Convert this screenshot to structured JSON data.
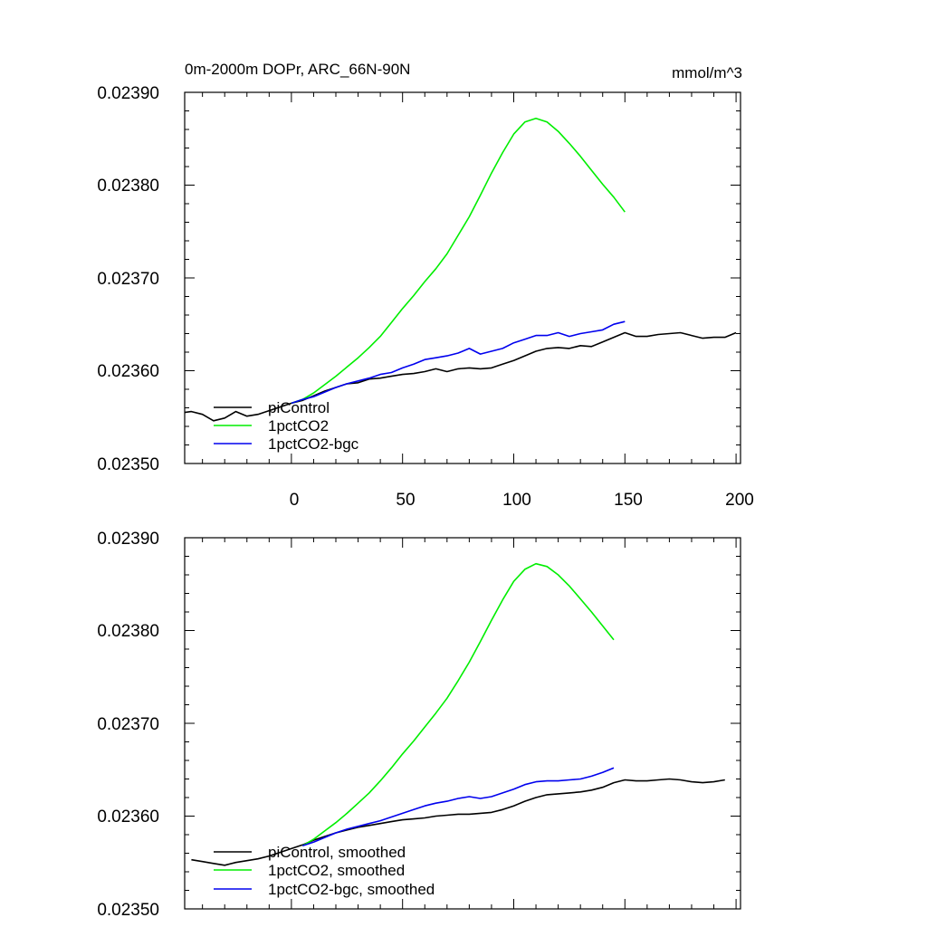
{
  "chart_data": [
    {
      "type": "line",
      "title": "0m-2000m DOPr, ARC_66N-90N",
      "units": "mmol/m^3",
      "xlim": [
        -48,
        202
      ],
      "ylim": [
        0.0235,
        0.0239
      ],
      "xticks": [
        0,
        50,
        100,
        150,
        200
      ],
      "xtick_labels": [
        "0",
        "50",
        "100",
        "150",
        "200"
      ],
      "yticks": [
        0.0235,
        0.0236,
        0.0237,
        0.0238,
        0.0239
      ],
      "ytick_labels": [
        "0.02350",
        "0.02360",
        "0.02370",
        "0.02380",
        "0.02390"
      ],
      "legend_position": "bottom-left",
      "series": [
        {
          "name": "piControl",
          "color": "#000000",
          "x": [
            -48,
            -45,
            -40,
            -35,
            -30,
            -25,
            -20,
            -15,
            -10,
            -5,
            0,
            5,
            10,
            15,
            20,
            25,
            30,
            35,
            40,
            45,
            50,
            55,
            60,
            65,
            70,
            75,
            80,
            85,
            90,
            95,
            100,
            105,
            110,
            115,
            120,
            125,
            130,
            135,
            140,
            145,
            150,
            155,
            160,
            165,
            170,
            175,
            180,
            185,
            190,
            195,
            200
          ],
          "y": [
            0.023555,
            0.023556,
            0.023553,
            0.023546,
            0.023549,
            0.023556,
            0.023551,
            0.023553,
            0.023557,
            0.023561,
            0.023565,
            0.023568,
            0.023573,
            0.023578,
            0.023582,
            0.023586,
            0.023587,
            0.023591,
            0.023592,
            0.023594,
            0.023596,
            0.023597,
            0.023599,
            0.023602,
            0.023599,
            0.023602,
            0.023603,
            0.023602,
            0.023603,
            0.023607,
            0.023611,
            0.023616,
            0.023621,
            0.023624,
            0.023625,
            0.023624,
            0.023627,
            0.023626,
            0.023631,
            0.023636,
            0.023641,
            0.023637,
            0.023637,
            0.023639,
            0.02364,
            0.023641,
            0.023638,
            0.023635,
            0.023636,
            0.023636,
            0.023641
          ]
        },
        {
          "name": "1pctCO2",
          "color": "#00ee00",
          "x": [
            0,
            5,
            10,
            15,
            20,
            25,
            30,
            35,
            40,
            45,
            50,
            55,
            60,
            65,
            70,
            75,
            80,
            85,
            90,
            95,
            100,
            105,
            110,
            115,
            120,
            125,
            130,
            135,
            140,
            145,
            150
          ],
          "y": [
            0.023565,
            0.023569,
            0.023576,
            0.023585,
            0.023594,
            0.023604,
            0.023614,
            0.023625,
            0.023637,
            0.023652,
            0.023667,
            0.023681,
            0.023696,
            0.02371,
            0.023726,
            0.023746,
            0.023766,
            0.023789,
            0.023813,
            0.023835,
            0.023855,
            0.023868,
            0.023872,
            0.023868,
            0.023858,
            0.023845,
            0.023831,
            0.023816,
            0.023801,
            0.023787,
            0.023771
          ]
        },
        {
          "name": "1pctCO2-bgc",
          "color": "#0000ee",
          "x": [
            0,
            5,
            10,
            15,
            20,
            25,
            30,
            35,
            40,
            45,
            50,
            55,
            60,
            65,
            70,
            75,
            80,
            85,
            90,
            95,
            100,
            105,
            110,
            115,
            120,
            125,
            130,
            135,
            140,
            145,
            150
          ],
          "y": [
            0.023565,
            0.023569,
            0.023572,
            0.023577,
            0.023582,
            0.023586,
            0.023589,
            0.023592,
            0.023596,
            0.023598,
            0.023603,
            0.023607,
            0.023612,
            0.023614,
            0.023616,
            0.023619,
            0.023624,
            0.023618,
            0.023621,
            0.023624,
            0.02363,
            0.023634,
            0.023638,
            0.023638,
            0.023641,
            0.023637,
            0.02364,
            0.023642,
            0.023644,
            0.02365,
            0.023653
          ]
        }
      ]
    },
    {
      "type": "line",
      "xlim": [
        -48,
        202
      ],
      "ylim": [
        0.0235,
        0.0239
      ],
      "xticks": [
        0,
        50,
        100,
        150,
        200
      ],
      "yticks": [
        0.0235,
        0.0236,
        0.0237,
        0.0238,
        0.0239
      ],
      "ytick_labels": [
        "0.02350",
        "0.02360",
        "0.02370",
        "0.02380",
        "0.02390"
      ],
      "legend_position": "bottom-left",
      "series": [
        {
          "name": "piControl, smoothed",
          "color": "#000000",
          "x": [
            -45,
            -40,
            -35,
            -30,
            -25,
            -20,
            -15,
            -10,
            -5,
            0,
            5,
            10,
            15,
            20,
            25,
            30,
            35,
            40,
            45,
            50,
            55,
            60,
            65,
            70,
            75,
            80,
            85,
            90,
            95,
            100,
            105,
            110,
            115,
            120,
            125,
            130,
            135,
            140,
            145,
            150,
            155,
            160,
            165,
            170,
            175,
            180,
            185,
            190,
            195
          ],
          "y": [
            0.023553,
            0.023551,
            0.023549,
            0.023547,
            0.02355,
            0.023552,
            0.023554,
            0.023557,
            0.023561,
            0.023565,
            0.023569,
            0.023574,
            0.023578,
            0.023582,
            0.023585,
            0.023588,
            0.02359,
            0.023592,
            0.023594,
            0.023596,
            0.023597,
            0.023598,
            0.0236,
            0.023601,
            0.023602,
            0.023602,
            0.023603,
            0.023604,
            0.023607,
            0.023611,
            0.023616,
            0.02362,
            0.023623,
            0.023624,
            0.023625,
            0.023626,
            0.023628,
            0.023631,
            0.023636,
            0.023639,
            0.023638,
            0.023638,
            0.023639,
            0.02364,
            0.023639,
            0.023637,
            0.023636,
            0.023637,
            0.023639
          ]
        },
        {
          "name": "1pctCO2, smoothed",
          "color": "#00ee00",
          "x": [
            5,
            10,
            15,
            20,
            25,
            30,
            35,
            40,
            45,
            50,
            55,
            60,
            65,
            70,
            75,
            80,
            85,
            90,
            95,
            100,
            105,
            110,
            115,
            120,
            125,
            130,
            135,
            140,
            145
          ],
          "y": [
            0.023568,
            0.023575,
            0.023584,
            0.023593,
            0.023603,
            0.023614,
            0.023625,
            0.023638,
            0.023652,
            0.023667,
            0.023681,
            0.023696,
            0.023711,
            0.023727,
            0.023746,
            0.023766,
            0.023788,
            0.023811,
            0.023833,
            0.023853,
            0.023866,
            0.023872,
            0.023869,
            0.02386,
            0.023848,
            0.023834,
            0.02382,
            0.023805,
            0.02379
          ]
        },
        {
          "name": "1pctCO2-bgc, smoothed",
          "color": "#0000ee",
          "x": [
            5,
            10,
            15,
            20,
            25,
            30,
            35,
            40,
            45,
            50,
            55,
            60,
            65,
            70,
            75,
            80,
            85,
            90,
            95,
            100,
            105,
            110,
            115,
            120,
            125,
            130,
            135,
            140,
            145
          ],
          "y": [
            0.023568,
            0.023572,
            0.023577,
            0.023582,
            0.023586,
            0.023589,
            0.023592,
            0.023595,
            0.023599,
            0.023603,
            0.023607,
            0.023611,
            0.023614,
            0.023616,
            0.023619,
            0.023621,
            0.023619,
            0.023621,
            0.023625,
            0.023629,
            0.023634,
            0.023637,
            0.023638,
            0.023638,
            0.023639,
            0.02364,
            0.023643,
            0.023647,
            0.023652
          ]
        }
      ]
    }
  ]
}
